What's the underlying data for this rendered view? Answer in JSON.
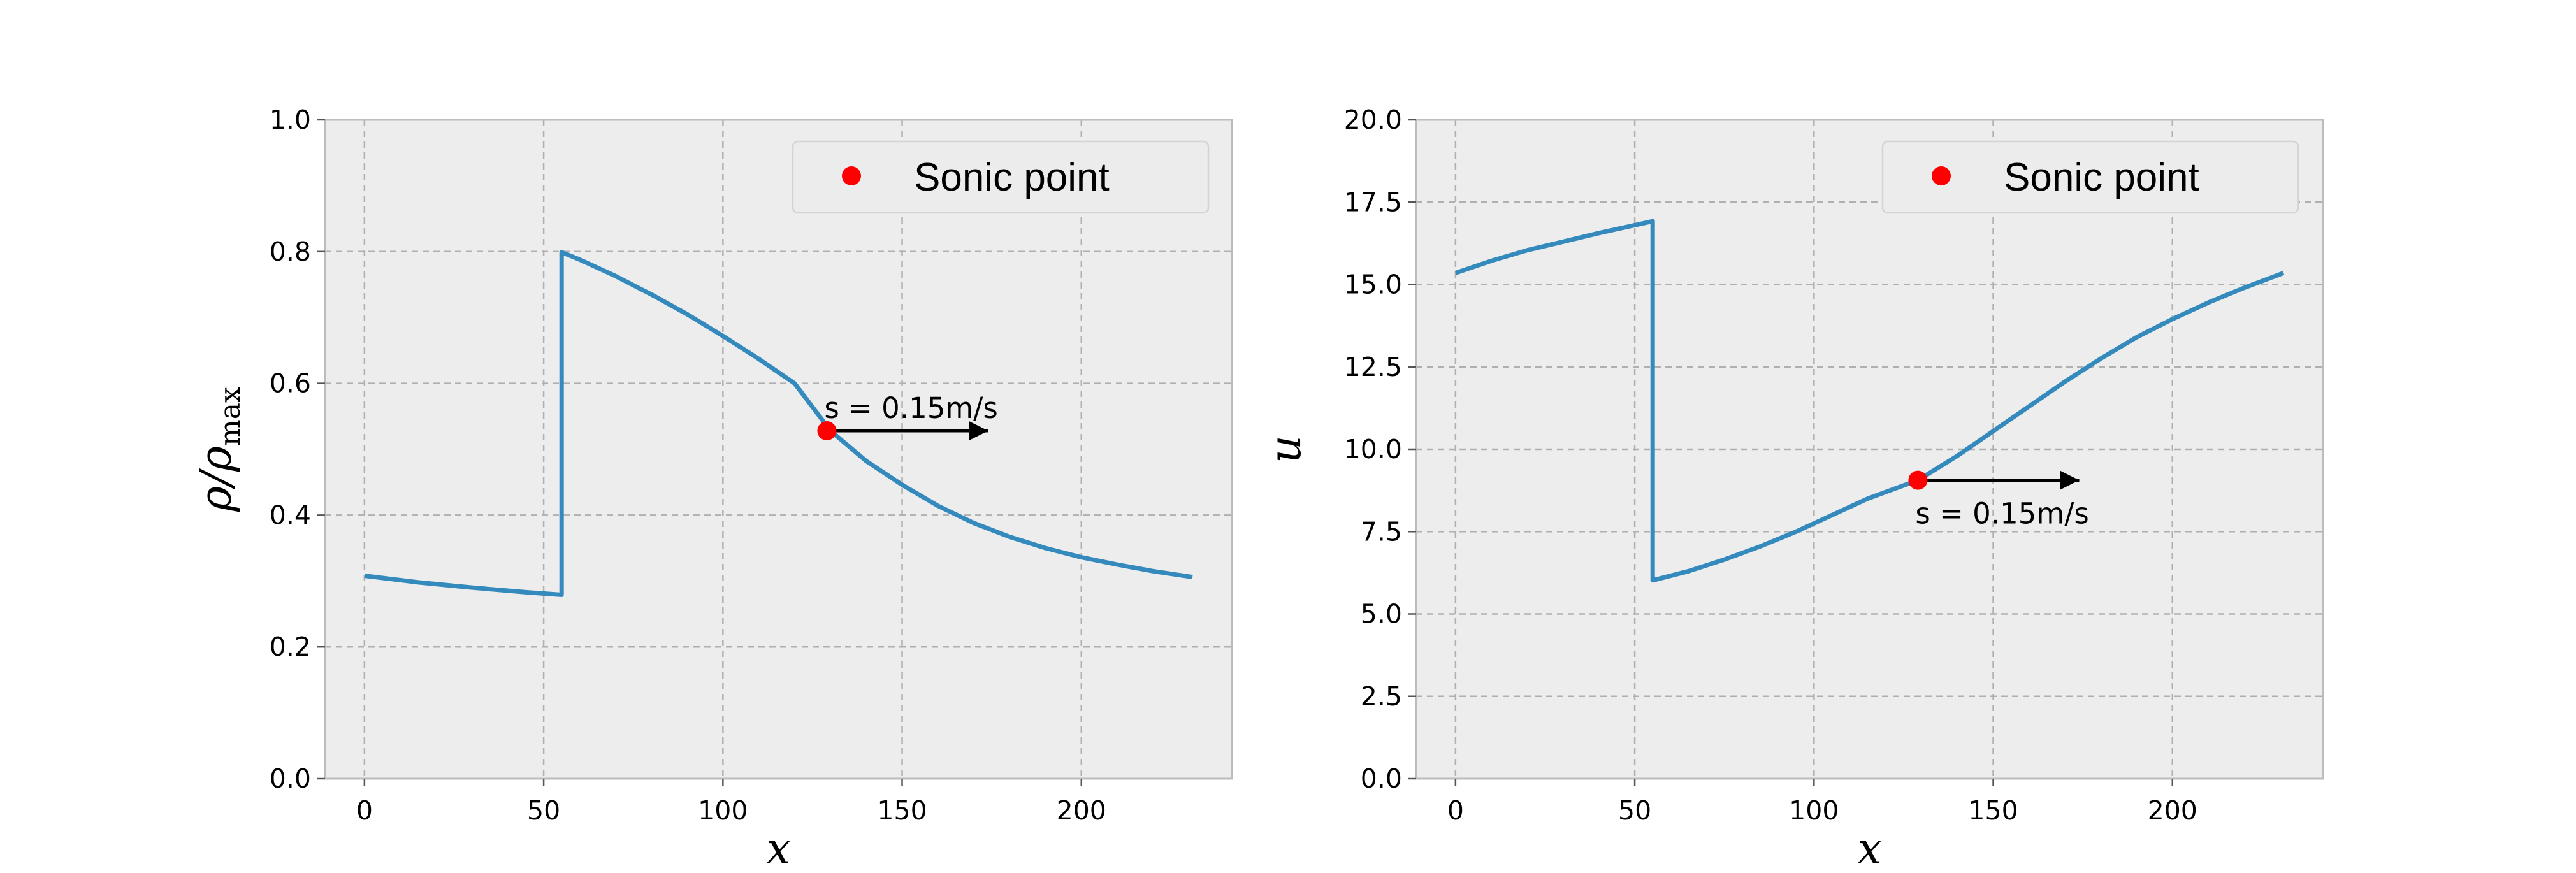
{
  "chart_data": [
    {
      "type": "line",
      "xlabel": "x",
      "ylabel_main": "ρ/ρ",
      "ylabel_sub": "max",
      "xlim": [
        -11,
        242
      ],
      "ylim": [
        0.0,
        1.0
      ],
      "xticks": [
        0,
        50,
        100,
        150,
        200
      ],
      "yticks": [
        0.0,
        0.2,
        0.4,
        0.6,
        0.8,
        1.0
      ],
      "ytick_labels": [
        "0.0",
        "0.2",
        "0.4",
        "0.6",
        "0.8",
        "1.0"
      ],
      "grid": true,
      "legend_position": "top-right",
      "legend": [
        "Sonic point"
      ],
      "series": [
        {
          "color": "#348abd",
          "points": [
            [
              0,
              0.308
            ],
            [
              15,
              0.298
            ],
            [
              30,
              0.29
            ],
            [
              45,
              0.283
            ],
            [
              55,
              0.279
            ],
            [
              55,
              0.799
            ],
            [
              60,
              0.788
            ],
            [
              70,
              0.763
            ],
            [
              80,
              0.735
            ],
            [
              90,
              0.705
            ],
            [
              100,
              0.672
            ],
            [
              110,
              0.637
            ],
            [
              120,
              0.6
            ],
            [
              130,
              0.528
            ],
            [
              140,
              0.482
            ],
            [
              150,
              0.446
            ],
            [
              160,
              0.414
            ],
            [
              170,
              0.388
            ],
            [
              180,
              0.367
            ],
            [
              190,
              0.35
            ],
            [
              200,
              0.336
            ],
            [
              210,
              0.325
            ],
            [
              220,
              0.315
            ],
            [
              231,
              0.306
            ]
          ]
        }
      ],
      "sonic_point": {
        "x": 129,
        "y": 0.528,
        "color": "#ff0000"
      },
      "arrow": {
        "from": [
          129,
          0.528
        ],
        "to": [
          174,
          0.528
        ]
      },
      "annotation": {
        "text": "s = 0.15m/s",
        "x": 129,
        "y": 0.528,
        "position": "above"
      }
    },
    {
      "type": "line",
      "xlabel": "x",
      "ylabel": "u",
      "xlim": [
        -11,
        242
      ],
      "ylim": [
        0.0,
        20.0
      ],
      "xticks": [
        0,
        50,
        100,
        150,
        200
      ],
      "yticks": [
        0.0,
        2.5,
        5.0,
        7.5,
        10.0,
        12.5,
        15.0,
        17.5,
        20.0
      ],
      "ytick_labels": [
        "0.0",
        "2.5",
        "5.0",
        "7.5",
        "10.0",
        "12.5",
        "15.0",
        "17.5",
        "20.0"
      ],
      "grid": true,
      "legend_position": "top-right",
      "legend": [
        "Sonic point"
      ],
      "series": [
        {
          "color": "#348abd",
          "points": [
            [
              0,
              15.35
            ],
            [
              10,
              15.72
            ],
            [
              20,
              16.04
            ],
            [
              30,
              16.3
            ],
            [
              40,
              16.56
            ],
            [
              55,
              16.92
            ],
            [
              55,
              6.02
            ],
            [
              65,
              6.3
            ],
            [
              75,
              6.65
            ],
            [
              85,
              7.05
            ],
            [
              95,
              7.5
            ],
            [
              105,
              8.0
            ],
            [
              115,
              8.5
            ],
            [
              129,
              9.06
            ],
            [
              140,
              9.8
            ],
            [
              150,
              10.55
            ],
            [
              160,
              11.3
            ],
            [
              170,
              12.05
            ],
            [
              180,
              12.75
            ],
            [
              190,
              13.4
            ],
            [
              200,
              13.95
            ],
            [
              210,
              14.45
            ],
            [
              220,
              14.9
            ],
            [
              231,
              15.35
            ]
          ]
        }
      ],
      "sonic_point": {
        "x": 129,
        "y": 9.06,
        "color": "#ff0000"
      },
      "arrow": {
        "from": [
          129,
          9.06
        ],
        "to": [
          174,
          9.06
        ]
      },
      "annotation": {
        "text": "s = 0.15m/s",
        "x": 129,
        "y": 9.06,
        "position": "below"
      }
    }
  ]
}
